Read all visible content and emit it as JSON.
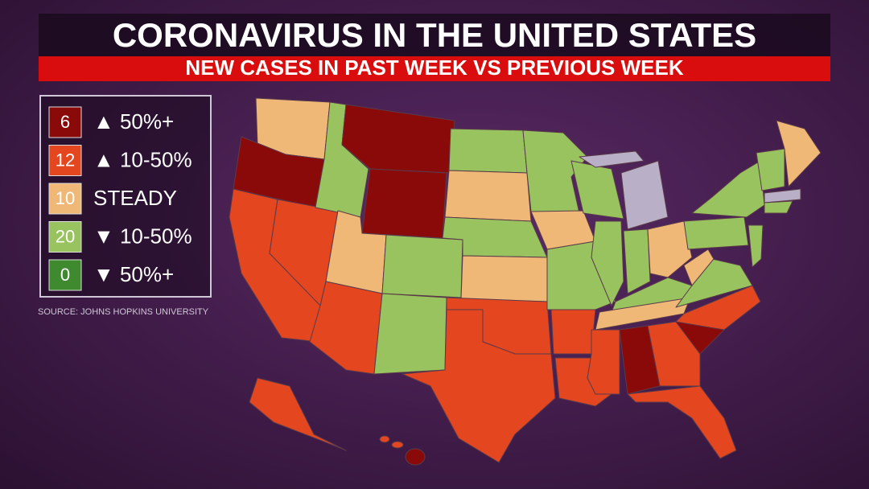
{
  "header": {
    "title": "CORONAVIRUS IN THE UNITED STATES",
    "subtitle": "NEW CASES IN PAST WEEK VS PREVIOUS WEEK"
  },
  "legend": {
    "items": [
      {
        "count": 6,
        "label": "▲ 50%+"
      },
      {
        "count": 12,
        "label": "▲ 10-50%"
      },
      {
        "count": 10,
        "label": "STEADY"
      },
      {
        "count": 20,
        "label": "▼ 10-50%"
      },
      {
        "count": 0,
        "label": "▼ 50%+"
      }
    ]
  },
  "source": "SOURCE: JOHNS HOPKINS UNIVERSITY"
}
